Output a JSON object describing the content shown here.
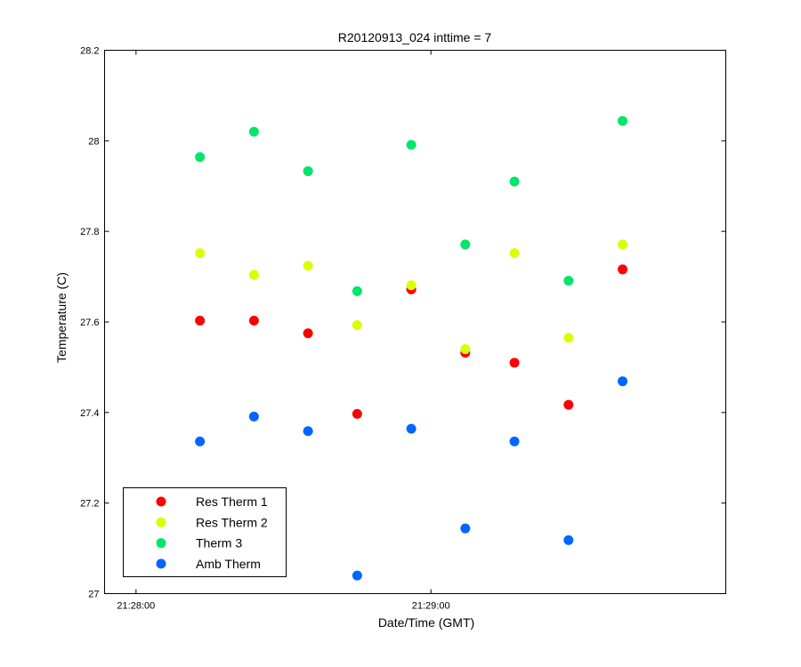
{
  "chart_data": {
    "type": "scatter",
    "title": "R20120913_024 inttime = 7",
    "xlabel": "Date/Time (GMT)",
    "ylabel": "Temperature (C)",
    "xlim": [
      "21:28:00",
      "21:30:00"
    ],
    "ylim": [
      27,
      28.2
    ],
    "x_ticks": [
      "21:28:00",
      "21:29:00"
    ],
    "y_ticks": [
      "27",
      "27.2",
      "27.4",
      "27.6",
      "27.8",
      "28",
      "28.2"
    ],
    "grid": false,
    "legend_position": "bottom-left",
    "x": [
      "21:28:13",
      "21:28:24",
      "21:28:35",
      "21:28:45",
      "21:28:56",
      "21:29:07",
      "21:29:17",
      "21:29:28",
      "21:29:39"
    ],
    "series": [
      {
        "name": "Res Therm 1",
        "color": "#ff0000",
        "values": [
          27.603,
          27.603,
          27.575,
          27.397,
          27.672,
          27.532,
          27.51,
          27.417,
          27.716
        ]
      },
      {
        "name": "Res Therm 2",
        "color": "#d9ff00",
        "values": [
          27.752,
          27.704,
          27.724,
          27.593,
          27.681,
          27.54,
          27.752,
          27.565,
          27.771
        ]
      },
      {
        "name": "Therm 3",
        "color": "#00e66b",
        "values": [
          27.964,
          28.02,
          27.933,
          27.668,
          27.991,
          27.771,
          27.91,
          27.691,
          28.044
        ]
      },
      {
        "name": "Amb Therm",
        "color": "#0066ff",
        "values": [
          27.336,
          27.391,
          27.359,
          27.04,
          27.364,
          27.144,
          27.336,
          27.118,
          27.469
        ]
      }
    ]
  }
}
